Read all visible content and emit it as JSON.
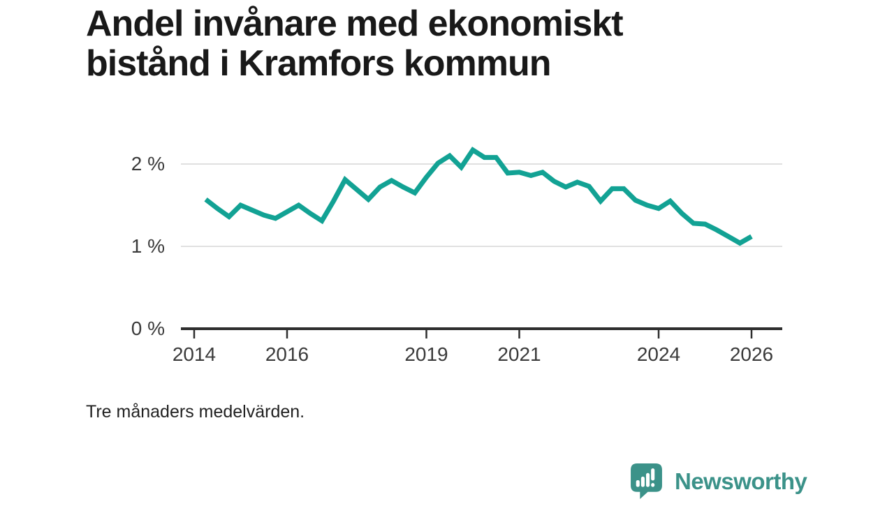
{
  "page": {
    "background": "#ffffff",
    "title_lines": [
      "Andel invånare med ekonomiskt",
      "bistånd i Kramfors kommun"
    ],
    "footnote": "Tre månaders medelvärden."
  },
  "branding": {
    "logo_text": "Newsworthy",
    "logo_color": "#3B9289",
    "logo_icon": "newsworthy-speech-bubble-bar-chart-icon"
  },
  "chart_data": {
    "type": "line",
    "title": "Andel invånare med ekonomiskt bistånd i Kramfors kommun",
    "note": "Tre månaders medelvärden.",
    "xlabel": "",
    "ylabel": "",
    "grid": "horizontal",
    "legend": "none",
    "line_color": "#12A294",
    "axis_color": "#2e2e2e",
    "gridline_color": "#e0e0e0",
    "ylim": [
      0,
      2.3
    ],
    "xlim_years": [
      2014,
      2026.4
    ],
    "yticks": [
      {
        "value": 2,
        "label": "2 %"
      },
      {
        "value": 1,
        "label": "1 %"
      },
      {
        "value": 0,
        "label": "0 %"
      }
    ],
    "xticks": [
      {
        "value": 2014,
        "label": "2014"
      },
      {
        "value": 2016,
        "label": "2016"
      },
      {
        "value": 2019,
        "label": "2019"
      },
      {
        "value": 2021,
        "label": "2021"
      },
      {
        "value": 2024,
        "label": "2024"
      },
      {
        "value": 2026,
        "label": "2026"
      }
    ],
    "x": [
      "2014-Q2",
      "2014-Q3",
      "2014-Q4",
      "2015-Q1",
      "2015-Q2",
      "2015-Q3",
      "2015-Q4",
      "2016-Q1",
      "2016-Q2",
      "2016-Q3",
      "2016-Q4",
      "2017-Q1",
      "2017-Q2",
      "2017-Q3",
      "2017-Q4",
      "2018-Q1",
      "2018-Q2",
      "2018-Q3",
      "2018-Q4",
      "2019-Q1",
      "2019-Q2",
      "2019-Q3",
      "2019-Q4",
      "2020-Q1",
      "2020-Q2",
      "2020-Q3",
      "2020-Q4",
      "2021-Q1",
      "2021-Q2",
      "2021-Q3",
      "2021-Q4",
      "2022-Q1",
      "2022-Q2",
      "2022-Q3",
      "2022-Q4",
      "2023-Q1",
      "2023-Q2",
      "2023-Q3",
      "2023-Q4",
      "2024-Q1",
      "2024-Q2",
      "2024-Q3",
      "2024-Q4",
      "2025-Q1",
      "2025-Q2",
      "2025-Q3",
      "2025-Q4",
      "2026-Q1"
    ],
    "series": [
      {
        "name": "Andel invånare med ekonomiskt bistånd (%)",
        "values": [
          1.57,
          1.46,
          1.36,
          1.5,
          1.44,
          1.38,
          1.34,
          1.42,
          1.5,
          1.4,
          1.31,
          1.55,
          1.81,
          1.69,
          1.57,
          1.72,
          1.8,
          1.72,
          1.65,
          1.84,
          2.01,
          2.1,
          1.96,
          2.17,
          2.08,
          2.08,
          1.89,
          1.9,
          1.86,
          1.9,
          1.79,
          1.72,
          1.78,
          1.73,
          1.55,
          1.7,
          1.7,
          1.56,
          1.5,
          1.46,
          1.55,
          1.4,
          1.28,
          1.27,
          1.2,
          1.12,
          1.04,
          1.12
        ]
      }
    ]
  }
}
